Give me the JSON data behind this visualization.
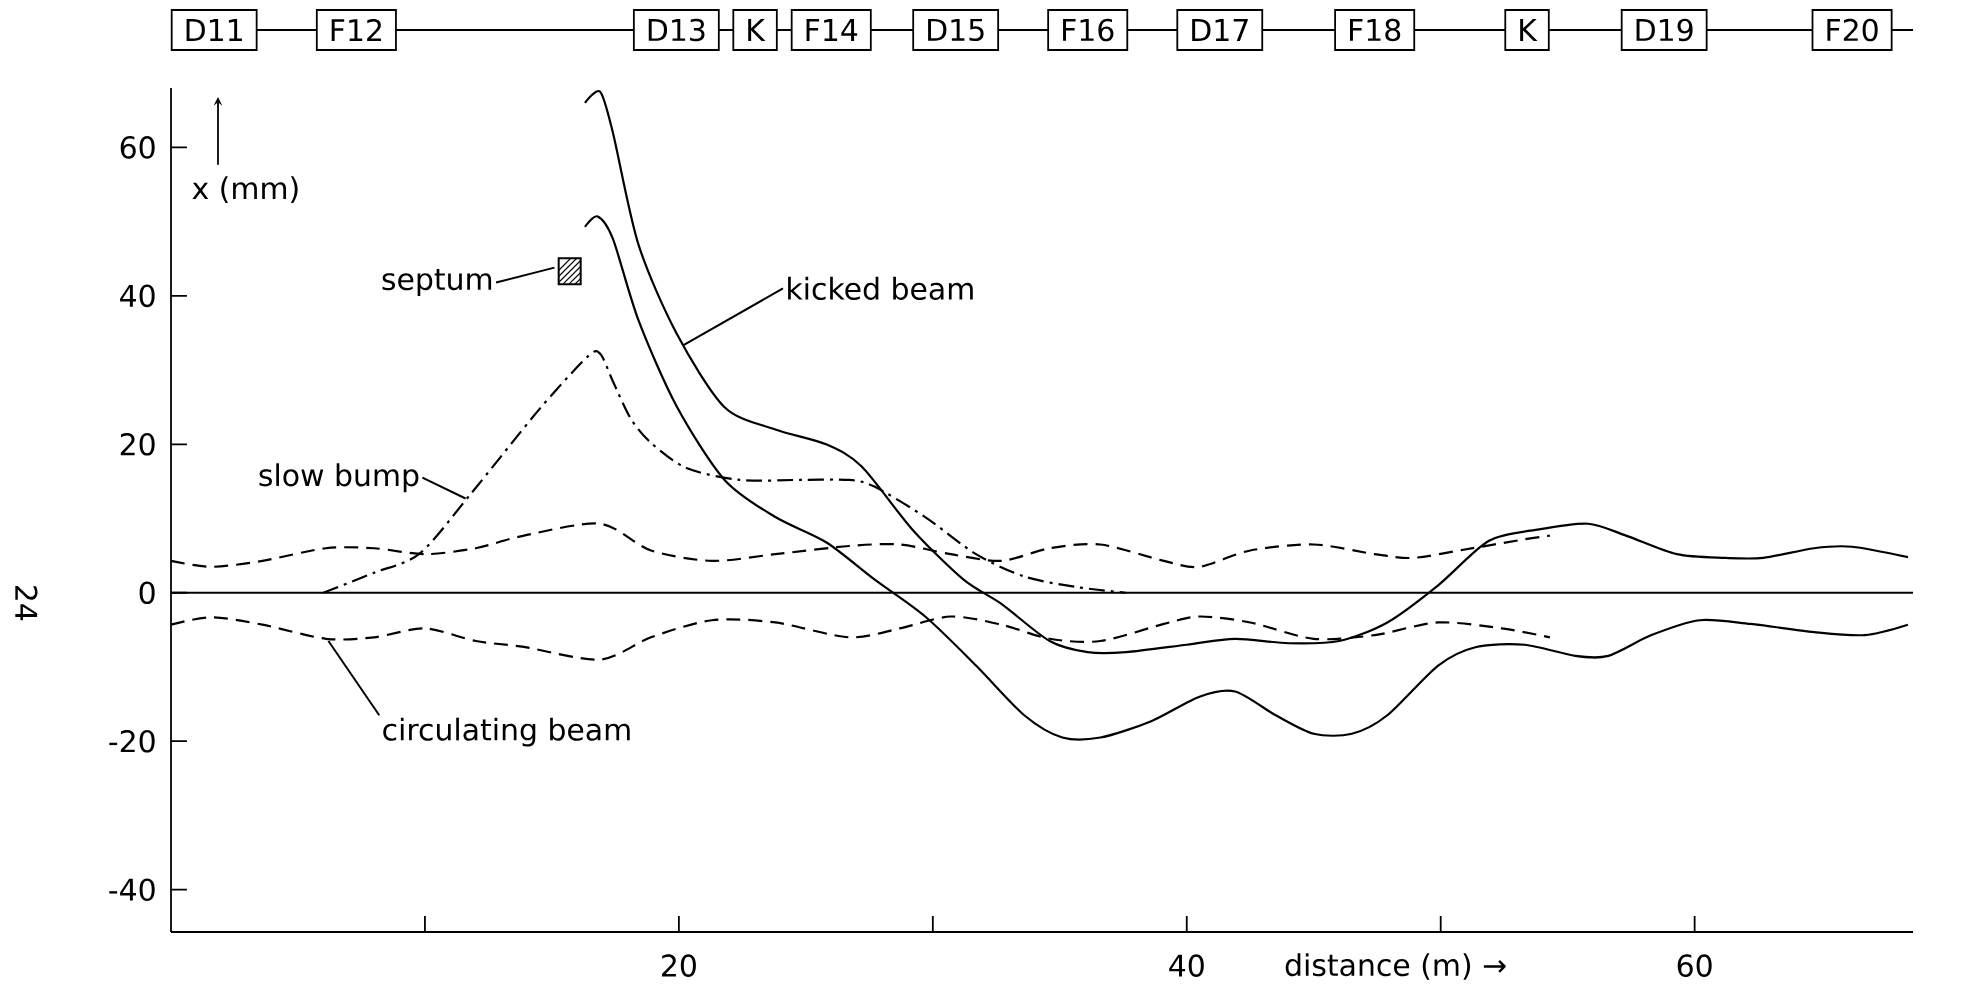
{
  "chart_data": {
    "type": "line",
    "xlabel": "distance (m) →",
    "ylabel": "x (mm)",
    "xlim": [
      0,
      68.6
    ],
    "ylim": [
      -45.7,
      68
    ],
    "xticks": [
      {
        "value": 10,
        "label": null
      },
      20,
      {
        "value": 30,
        "label": null
      },
      40,
      {
        "value": 50,
        "label": null
      },
      60
    ],
    "yticks": [
      -40,
      -20,
      0,
      20,
      40,
      60
    ],
    "ref_lines": [
      {
        "axis": "y",
        "value": 0,
        "color": "#000000",
        "line_style": "solid"
      }
    ],
    "series": [
      {
        "color": "#000000",
        "line_style": "solid",
        "x": [
          16.3,
          16.9,
          17.4,
          18.4,
          19.9,
          21.8,
          23.8,
          25.8,
          27.2,
          29.2,
          31.2,
          32.7,
          34.6,
          36.1,
          37.6,
          40.0,
          41.9,
          44.0,
          46.0,
          47.9,
          49.9,
          51.9,
          53.8,
          55.8,
          57.3,
          59.3,
          61.2,
          62.7,
          64.7,
          66.2,
          68.4
        ],
        "values": [
          66,
          67.5,
          62,
          47,
          35,
          25,
          22,
          20,
          17,
          8.5,
          1.8,
          -1.5,
          -6.5,
          -8,
          -8,
          -7,
          -6.2,
          -6.8,
          -6.5,
          -4,
          1,
          7,
          8.5,
          9.3,
          7.7,
          5.2,
          4.7,
          4.7,
          6,
          6.2,
          4.8
        ]
      },
      {
        "color": "#000000",
        "line_style": "solid",
        "x": [
          16.3,
          16.8,
          17.4,
          18.4,
          19.9,
          21.8,
          23.8,
          25.8,
          27.7,
          29.7,
          31.7,
          33.6,
          35.1,
          36.6,
          38.6,
          40.5,
          41.9,
          43.5,
          45.0,
          46.5,
          47.9,
          49.9,
          51.4,
          53.3,
          55.3,
          56.6,
          58.3,
          60.2,
          62.2,
          64.7,
          66.7,
          68.4
        ],
        "values": [
          49.3,
          50.7,
          47.7,
          36.8,
          25.2,
          15.2,
          10.2,
          6.8,
          1.8,
          -3.2,
          -9.8,
          -16.5,
          -19.5,
          -19.5,
          -17.3,
          -14,
          -13.3,
          -16.5,
          -19,
          -19,
          -16.5,
          -9.8,
          -7.3,
          -7,
          -8.5,
          -8.5,
          -5.7,
          -3.7,
          -4.2,
          -5.3,
          -5.7,
          -4.3
        ]
      },
      {
        "color": "#000000",
        "line_style": "dashdot",
        "x": [
          6.0,
          8.0,
          9.8,
          11.8,
          14.5,
          16.4,
          16.9,
          17.4,
          18.1,
          18.9,
          20.3,
          22.4,
          24.8,
          26.7,
          27.7,
          29.7,
          31.7,
          33.6,
          35.6,
          37.6
        ],
        "values": [
          0,
          2.7,
          5.3,
          13.3,
          24.7,
          31.8,
          32.2,
          28.5,
          23.5,
          20.2,
          16.8,
          15.2,
          15.2,
          15.2,
          14.3,
          10.2,
          5.2,
          2.2,
          0.8,
          0
        ]
      },
      {
        "color": "#000000",
        "line_style": "dashed",
        "x": [
          0,
          1.6,
          3.6,
          6.1,
          8.0,
          10.0,
          12.0,
          13.9,
          16.9,
          18.9,
          21.3,
          23.8,
          26.7,
          28.7,
          30.7,
          32.7,
          34.6,
          36.6,
          39.1,
          40.5,
          42.5,
          45.0,
          47.4,
          48.9,
          50.9,
          53.3,
          54.3
        ],
        "values": [
          4.3,
          3.5,
          4.3,
          6,
          6,
          5.2,
          6,
          7.7,
          9.3,
          5.7,
          4.3,
          5.2,
          6.3,
          6.5,
          5.2,
          4.3,
          6,
          6.5,
          4.3,
          3.5,
          5.7,
          6.5,
          5.2,
          4.7,
          5.8,
          7.2,
          7.7
        ]
      },
      {
        "color": "#000000",
        "line_style": "dashed",
        "x": [
          0,
          1.6,
          3.6,
          6.1,
          8.0,
          10.0,
          12.0,
          13.9,
          16.9,
          18.9,
          21.3,
          23.8,
          26.7,
          28.7,
          30.7,
          32.7,
          34.6,
          36.6,
          39.1,
          40.5,
          42.5,
          45.0,
          47.4,
          49.9,
          52.4,
          54.3
        ],
        "values": [
          -4.3,
          -3.3,
          -4.3,
          -6.2,
          -6,
          -4.8,
          -6.5,
          -7.3,
          -9,
          -6,
          -3.7,
          -4,
          -6,
          -4.8,
          -3.2,
          -4.3,
          -6.2,
          -6.5,
          -4.2,
          -3.2,
          -4,
          -6.2,
          -5.7,
          -4,
          -4.8,
          -6
        ]
      }
    ],
    "annotations": [
      {
        "text": "septum",
        "x": 15.7,
        "y": 43.3
      },
      {
        "text": "kicked beam",
        "x": 20.2,
        "y": 33.4
      },
      {
        "text": "slow bump",
        "x": 11.6,
        "y": 12.7
      },
      {
        "text": "circulating beam",
        "x": 6.2,
        "y": -6.5
      },
      "D11",
      "F12",
      "D13",
      "K",
      "F14",
      "D15",
      "F16",
      "D17",
      "F18",
      "K",
      "D19",
      "F20",
      "24"
    ]
  }
}
